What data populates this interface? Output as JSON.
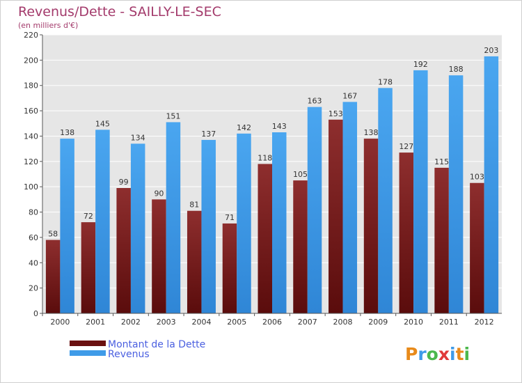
{
  "chart_data": {
    "type": "bar",
    "title": "Revenus/Dette - SAILLY-LE-SEC",
    "subtitle": "(en milliers d'€)",
    "categories": [
      "2000",
      "2001",
      "2002",
      "2003",
      "2004",
      "2005",
      "2006",
      "2007",
      "2008",
      "2009",
      "2010",
      "2011",
      "2012"
    ],
    "series": [
      {
        "name": "Montant de la Dette",
        "color": "#7a1a1a",
        "values": [
          58,
          72,
          99,
          90,
          81,
          71,
          118,
          105,
          153,
          138,
          127,
          115,
          103
        ]
      },
      {
        "name": "Revenus",
        "color": "#3f9be8",
        "values": [
          138,
          145,
          134,
          151,
          137,
          142,
          143,
          163,
          167,
          178,
          192,
          188,
          203
        ]
      }
    ],
    "ylim": [
      0,
      220
    ],
    "yticks": [
      0,
      20,
      40,
      60,
      80,
      100,
      120,
      140,
      160,
      180,
      200,
      220
    ],
    "grid": true,
    "legend_position": "bottom-left",
    "plot_background": "#e6e6e6"
  },
  "logo": {
    "text": "Proxiti"
  }
}
